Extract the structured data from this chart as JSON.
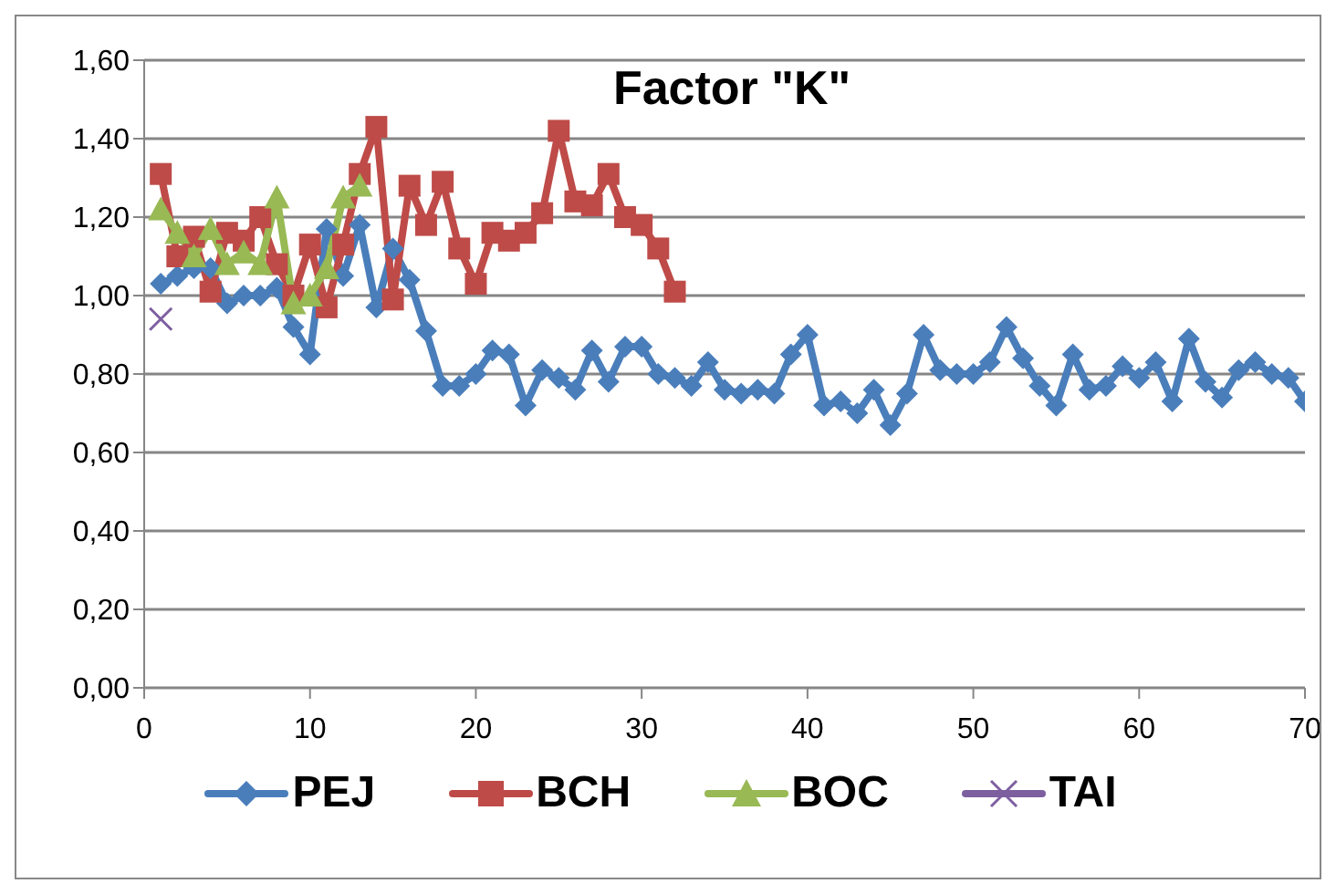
{
  "chart_data": {
    "type": "line",
    "title": "Factor \"K\"",
    "xlim": [
      0,
      70
    ],
    "xticks": [
      0,
      10,
      20,
      30,
      40,
      50,
      60,
      70
    ],
    "ylim": [
      0,
      1.6
    ],
    "yticks": [
      {
        "value": 0,
        "label": "0,00"
      },
      {
        "value": 0.2,
        "label": "0,20"
      },
      {
        "value": 0.4,
        "label": "0,40"
      },
      {
        "value": 0.6,
        "label": "0,60"
      },
      {
        "value": 0.8,
        "label": "0,80"
      },
      {
        "value": 1,
        "label": "1,00"
      },
      {
        "value": 1.2,
        "label": "1,20"
      },
      {
        "value": 1.4,
        "label": "1,40"
      },
      {
        "value": 1.6,
        "label": "1,60"
      }
    ],
    "grid": "y",
    "legend": "bottom",
    "line_style": "solid",
    "series": [
      {
        "name": "PEJ",
        "color": "#4a7ebb",
        "marker": "diamond",
        "x": [
          1,
          2,
          3,
          4,
          5,
          6,
          7,
          8,
          9,
          10,
          11,
          12,
          13,
          14,
          15,
          16,
          17,
          18,
          19,
          20,
          21,
          22,
          23,
          24,
          25,
          26,
          27,
          28,
          29,
          30,
          31,
          32,
          33,
          34,
          35,
          36,
          37,
          38,
          39,
          40,
          41,
          42,
          43,
          44,
          45,
          46,
          47,
          48,
          49,
          50,
          51,
          52,
          53,
          54,
          55,
          56,
          57,
          58,
          59,
          60,
          61,
          62,
          63,
          64,
          65,
          66,
          67,
          68,
          69,
          70
        ],
        "values": [
          1.03,
          1.05,
          1.07,
          1.07,
          0.98,
          1.0,
          1.0,
          1.02,
          0.92,
          0.85,
          1.17,
          1.05,
          1.18,
          0.97,
          1.12,
          1.04,
          0.91,
          0.77,
          0.77,
          0.8,
          0.86,
          0.85,
          0.72,
          0.81,
          0.79,
          0.76,
          0.86,
          0.78,
          0.87,
          0.87,
          0.8,
          0.79,
          0.77,
          0.83,
          0.76,
          0.75,
          0.76,
          0.75,
          0.85,
          0.9,
          0.72,
          0.73,
          0.7,
          0.76,
          0.67,
          0.75,
          0.9,
          0.81,
          0.8,
          0.8,
          0.83,
          0.92,
          0.84,
          0.77,
          0.72,
          0.85,
          0.76,
          0.77,
          0.82,
          0.79,
          0.83,
          0.73,
          0.89,
          0.78,
          0.74,
          0.81,
          0.83,
          0.8,
          0.79,
          0.73
        ]
      },
      {
        "name": "BCH",
        "color": "#be4b48",
        "marker": "square",
        "x": [
          1,
          2,
          3,
          4,
          5,
          6,
          7,
          8,
          9,
          10,
          11,
          12,
          13,
          14,
          15,
          16,
          17,
          18,
          19,
          20,
          21,
          22,
          23,
          24,
          25,
          26,
          27,
          28,
          29,
          30,
          31,
          32
        ],
        "values": [
          1.31,
          1.1,
          1.15,
          1.01,
          1.16,
          1.14,
          1.2,
          1.08,
          1.0,
          1.13,
          0.97,
          1.13,
          1.31,
          1.43,
          0.99,
          1.28,
          1.18,
          1.29,
          1.12,
          1.03,
          1.16,
          1.14,
          1.16,
          1.21,
          1.42,
          1.24,
          1.23,
          1.31,
          1.2,
          1.18,
          1.12,
          1.01
        ]
      },
      {
        "name": "BOC",
        "color": "#98b954",
        "marker": "triangle",
        "x": [
          1,
          2,
          3,
          4,
          5,
          6,
          7,
          8,
          9,
          10,
          11,
          12,
          13
        ],
        "values": [
          1.22,
          1.16,
          1.1,
          1.17,
          1.08,
          1.11,
          1.08,
          1.25,
          0.98,
          1.0,
          1.07,
          1.25,
          1.28
        ]
      },
      {
        "name": "TAI",
        "color": "#7d5fa0",
        "marker": "cross",
        "x": [
          1
        ],
        "values": [
          0.94
        ]
      }
    ]
  }
}
